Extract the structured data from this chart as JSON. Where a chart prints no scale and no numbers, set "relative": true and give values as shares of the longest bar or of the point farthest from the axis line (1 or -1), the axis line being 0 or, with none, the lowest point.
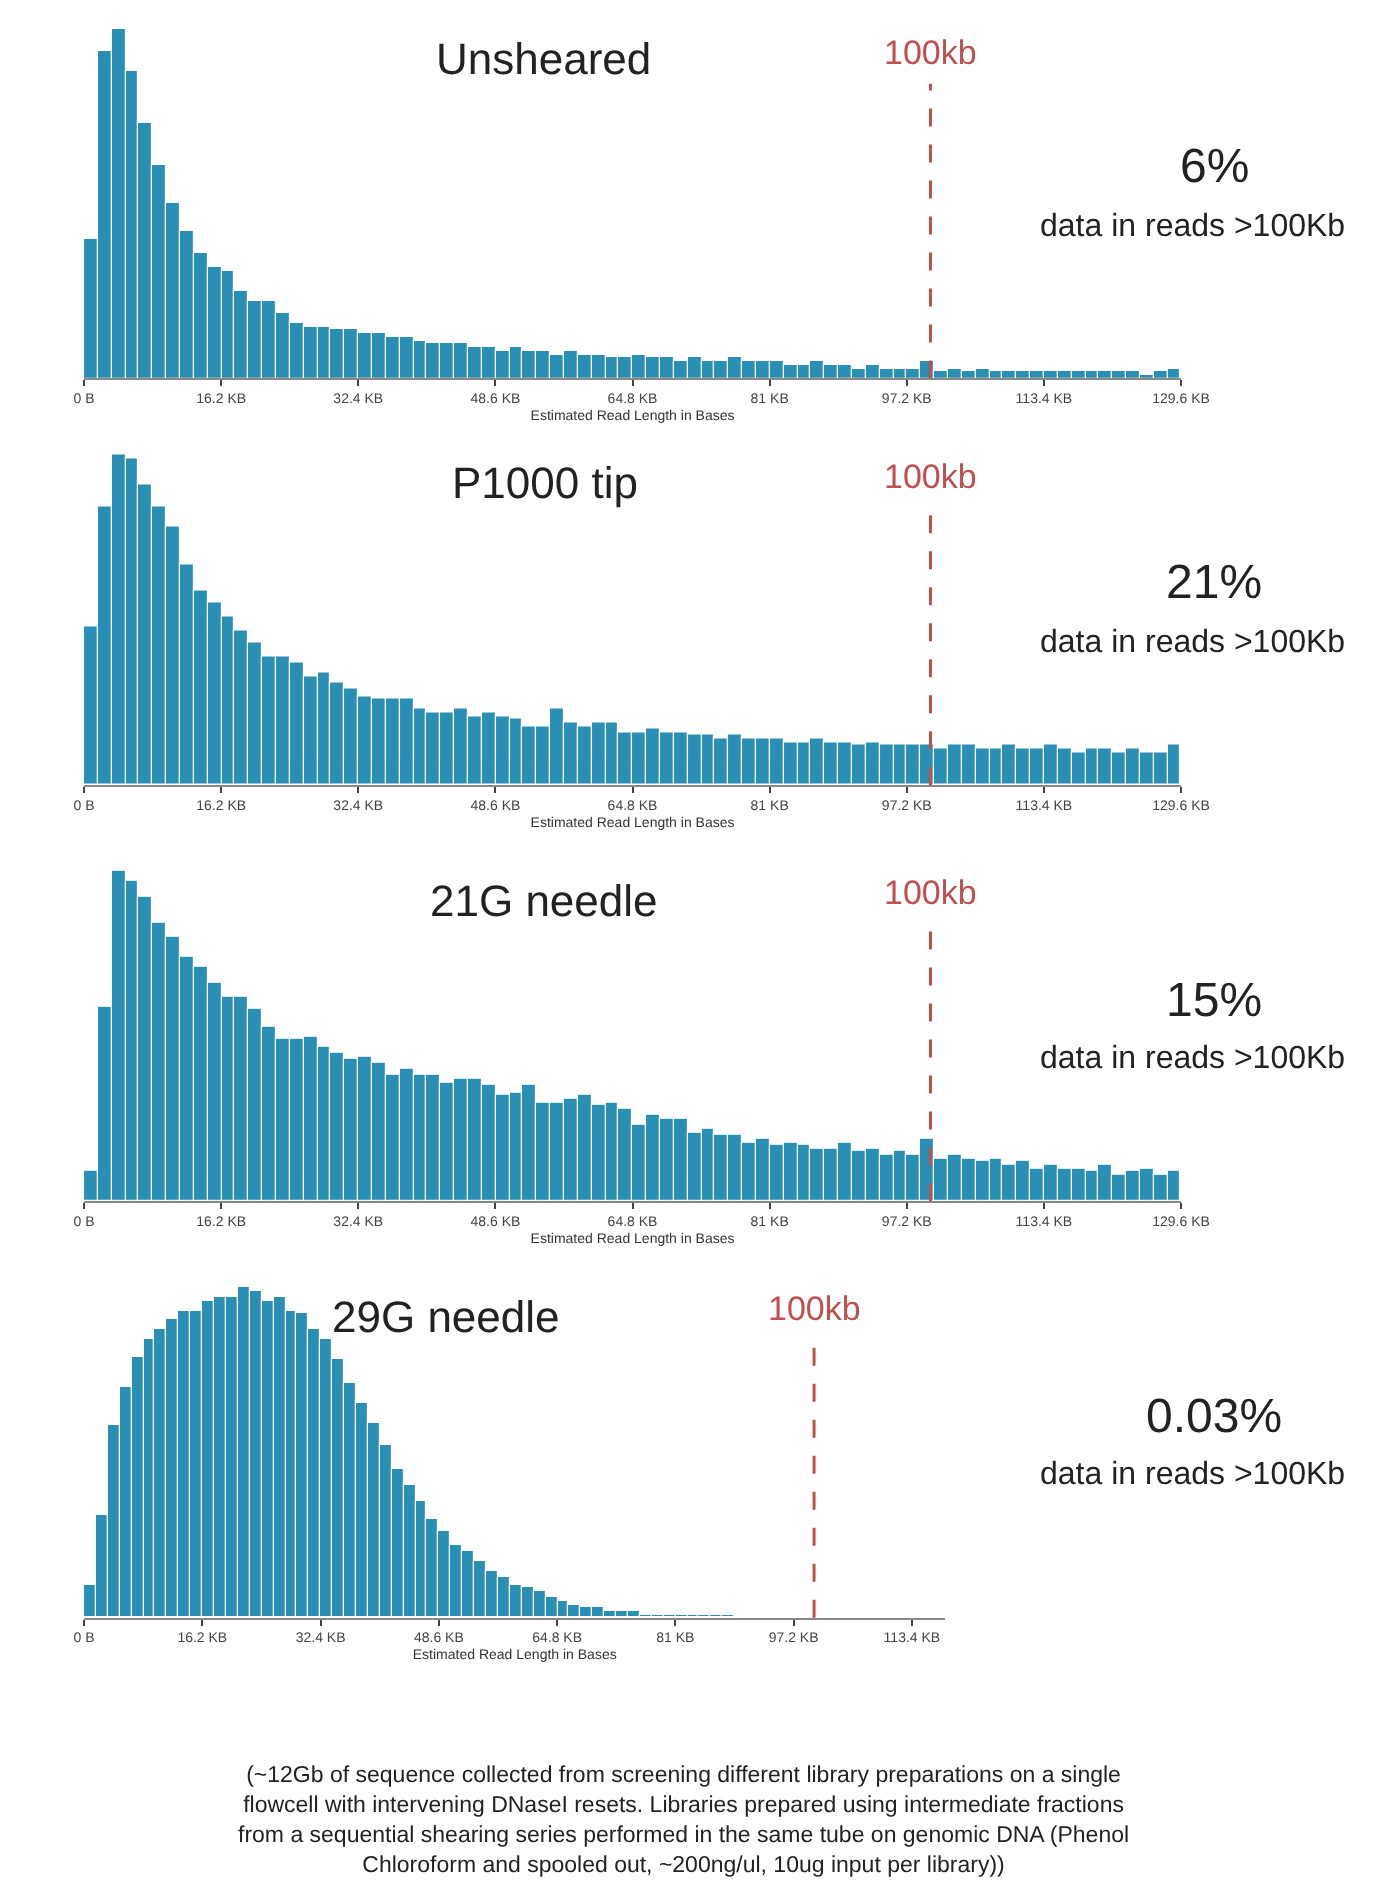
{
  "chart_data": [
    {
      "type": "bar",
      "relative": true,
      "title": "Unsheared",
      "xlabel": "Estimated Read Length in Bases",
      "color": "#2a8fb5",
      "xlim": [
        0,
        129.6
      ],
      "xticks": [
        {
          "value": 0,
          "label": "0 B"
        },
        {
          "value": 16.2,
          "label": "16.2 KB"
        },
        {
          "value": 32.4,
          "label": "32.4 KB"
        },
        {
          "value": 48.6,
          "label": "48.6 KB"
        },
        {
          "value": 64.8,
          "label": "64.8 KB"
        },
        {
          "value": 81,
          "label": "81 KB"
        },
        {
          "value": 97.2,
          "label": "97.2 KB"
        },
        {
          "value": 113.4,
          "label": "113.4 KB"
        },
        {
          "value": 129.6,
          "label": "129.6 KB"
        }
      ],
      "tick_labels": "x",
      "x": [
        0.81,
        2.43,
        4.05,
        5.67,
        7.29,
        8.91,
        10.53,
        12.15,
        13.77,
        15.39,
        17.01,
        18.63,
        20.25,
        21.87,
        23.49,
        25.11,
        26.73,
        28.35,
        29.97,
        31.59,
        33.21,
        34.83,
        36.45,
        38.07,
        39.69,
        41.31,
        42.93,
        44.55,
        46.17,
        47.79,
        49.41,
        51.03,
        52.65,
        54.27,
        55.89,
        57.51,
        59.13,
        60.75,
        62.37,
        63.99,
        65.61,
        67.23,
        68.85,
        70.47,
        72.09,
        73.71,
        75.33,
        76.95,
        78.57,
        80.19,
        81.81,
        83.43,
        85.05,
        86.67,
        88.29,
        89.91,
        91.53,
        93.15,
        94.77,
        96.39,
        98.01,
        99.63,
        101.25,
        102.87,
        104.49,
        106.11,
        107.73,
        109.35,
        110.97,
        112.59,
        114.21,
        115.83,
        117.45,
        119.07,
        120.69,
        122.31,
        123.93,
        125.55,
        127.17,
        128.79
      ],
      "values": [
        0.4,
        0.94,
        1.0,
        0.88,
        0.73,
        0.61,
        0.5,
        0.42,
        0.36,
        0.32,
        0.31,
        0.25,
        0.22,
        0.22,
        0.19,
        0.16,
        0.15,
        0.15,
        0.14,
        0.14,
        0.13,
        0.13,
        0.12,
        0.12,
        0.11,
        0.1,
        0.1,
        0.1,
        0.09,
        0.09,
        0.08,
        0.09,
        0.08,
        0.08,
        0.07,
        0.08,
        0.07,
        0.07,
        0.06,
        0.06,
        0.07,
        0.06,
        0.06,
        0.05,
        0.06,
        0.05,
        0.05,
        0.06,
        0.05,
        0.05,
        0.05,
        0.04,
        0.04,
        0.05,
        0.04,
        0.04,
        0.03,
        0.04,
        0.03,
        0.03,
        0.03,
        0.05,
        0.02,
        0.03,
        0.02,
        0.03,
        0.02,
        0.02,
        0.02,
        0.02,
        0.02,
        0.02,
        0.02,
        0.02,
        0.02,
        0.02,
        0.02,
        0.01,
        0.02,
        0.03
      ],
      "ref_lines": [
        {
          "axis": "x",
          "value": 100,
          "label": "100kb",
          "color": "#c0504d",
          "line_style": "dashed"
        }
      ],
      "annotations": [
        "6%",
        "data in reads >100Kb"
      ]
    },
    {
      "type": "bar",
      "relative": true,
      "title": "P1000 tip",
      "xlabel": "Estimated Read Length in Bases",
      "color": "#2a8fb5",
      "xlim": [
        0,
        129.6
      ],
      "xticks": [
        {
          "value": 0,
          "label": "0 B"
        },
        {
          "value": 16.2,
          "label": "16.2 KB"
        },
        {
          "value": 32.4,
          "label": "32.4 KB"
        },
        {
          "value": 48.6,
          "label": "48.6 KB"
        },
        {
          "value": 64.8,
          "label": "64.8 KB"
        },
        {
          "value": 81,
          "label": "81 KB"
        },
        {
          "value": 97.2,
          "label": "97.2 KB"
        },
        {
          "value": 113.4,
          "label": "113.4 KB"
        },
        {
          "value": 129.6,
          "label": "129.6 KB"
        }
      ],
      "tick_labels": "x",
      "x": [
        0.81,
        2.43,
        4.05,
        5.67,
        7.29,
        8.91,
        10.53,
        12.15,
        13.77,
        15.39,
        17.01,
        18.63,
        20.25,
        21.87,
        23.49,
        25.11,
        26.73,
        28.35,
        29.97,
        31.59,
        33.21,
        34.83,
        36.45,
        38.07,
        39.69,
        41.31,
        42.93,
        44.55,
        46.17,
        47.79,
        49.41,
        51.03,
        52.65,
        54.27,
        55.89,
        57.51,
        59.13,
        60.75,
        62.37,
        63.99,
        65.61,
        67.23,
        68.85,
        70.47,
        72.09,
        73.71,
        75.33,
        76.95,
        78.57,
        80.19,
        81.81,
        83.43,
        85.05,
        86.67,
        88.29,
        89.91,
        91.53,
        93.15,
        94.77,
        96.39,
        98.01,
        99.63,
        101.25,
        102.87,
        104.49,
        106.11,
        107.73,
        109.35,
        110.97,
        112.59,
        114.21,
        115.83,
        117.45,
        119.07,
        120.69,
        122.31,
        123.93,
        125.55,
        127.17,
        128.79
      ],
      "values": [
        0.48,
        0.84,
        1.0,
        0.99,
        0.91,
        0.84,
        0.78,
        0.67,
        0.59,
        0.55,
        0.51,
        0.47,
        0.43,
        0.39,
        0.39,
        0.37,
        0.33,
        0.34,
        0.31,
        0.29,
        0.27,
        0.26,
        0.26,
        0.26,
        0.23,
        0.22,
        0.22,
        0.23,
        0.21,
        0.22,
        0.21,
        0.2,
        0.18,
        0.18,
        0.23,
        0.19,
        0.18,
        0.19,
        0.19,
        0.16,
        0.16,
        0.17,
        0.16,
        0.16,
        0.15,
        0.15,
        0.14,
        0.15,
        0.14,
        0.14,
        0.14,
        0.13,
        0.13,
        0.14,
        0.13,
        0.13,
        0.12,
        0.13,
        0.12,
        0.12,
        0.12,
        0.12,
        0.11,
        0.12,
        0.12,
        0.11,
        0.11,
        0.12,
        0.11,
        0.11,
        0.12,
        0.11,
        0.1,
        0.11,
        0.11,
        0.1,
        0.11,
        0.1,
        0.1,
        0.12
      ],
      "ref_lines": [
        {
          "axis": "x",
          "value": 100,
          "label": "100kb",
          "color": "#c0504d",
          "line_style": "dashed"
        }
      ],
      "annotations": [
        "21%",
        "data in reads >100Kb"
      ]
    },
    {
      "type": "bar",
      "relative": true,
      "title": "21G needle",
      "xlabel": "Estimated Read Length in Bases",
      "color": "#2a8fb5",
      "xlim": [
        0,
        129.6
      ],
      "xticks": [
        {
          "value": 0,
          "label": "0 B"
        },
        {
          "value": 16.2,
          "label": "16.2 KB"
        },
        {
          "value": 32.4,
          "label": "32.4 KB"
        },
        {
          "value": 48.6,
          "label": "48.6 KB"
        },
        {
          "value": 64.8,
          "label": "64.8 KB"
        },
        {
          "value": 81,
          "label": "81 KB"
        },
        {
          "value": 97.2,
          "label": "97.2 KB"
        },
        {
          "value": 113.4,
          "label": "113.4 KB"
        },
        {
          "value": 129.6,
          "label": "129.6 KB"
        }
      ],
      "tick_labels": "x",
      "x": [
        0.81,
        2.43,
        4.05,
        5.67,
        7.29,
        8.91,
        10.53,
        12.15,
        13.77,
        15.39,
        17.01,
        18.63,
        20.25,
        21.87,
        23.49,
        25.11,
        26.73,
        28.35,
        29.97,
        31.59,
        33.21,
        34.83,
        36.45,
        38.07,
        39.69,
        41.31,
        42.93,
        44.55,
        46.17,
        47.79,
        49.41,
        51.03,
        52.65,
        54.27,
        55.89,
        57.51,
        59.13,
        60.75,
        62.37,
        63.99,
        65.61,
        67.23,
        68.85,
        70.47,
        72.09,
        73.71,
        75.33,
        76.95,
        78.57,
        80.19,
        81.81,
        83.43,
        85.05,
        86.67,
        88.29,
        89.91,
        91.53,
        93.15,
        94.77,
        96.39,
        98.01,
        99.63,
        101.25,
        102.87,
        104.49,
        106.11,
        107.73,
        109.35,
        110.97,
        112.59,
        114.21,
        115.83,
        117.45,
        119.07,
        120.69,
        122.31,
        123.93,
        125.55,
        127.17,
        128.79
      ],
      "values": [
        0.09,
        0.59,
        1.0,
        0.97,
        0.92,
        0.84,
        0.8,
        0.74,
        0.71,
        0.66,
        0.62,
        0.62,
        0.58,
        0.53,
        0.49,
        0.49,
        0.5,
        0.47,
        0.45,
        0.43,
        0.44,
        0.42,
        0.38,
        0.4,
        0.38,
        0.38,
        0.36,
        0.37,
        0.37,
        0.35,
        0.32,
        0.33,
        0.35,
        0.3,
        0.3,
        0.31,
        0.32,
        0.29,
        0.3,
        0.28,
        0.23,
        0.26,
        0.25,
        0.25,
        0.21,
        0.22,
        0.2,
        0.2,
        0.18,
        0.19,
        0.17,
        0.18,
        0.17,
        0.16,
        0.16,
        0.18,
        0.15,
        0.16,
        0.14,
        0.15,
        0.14,
        0.19,
        0.13,
        0.14,
        0.13,
        0.12,
        0.13,
        0.11,
        0.12,
        0.1,
        0.11,
        0.1,
        0.1,
        0.09,
        0.11,
        0.08,
        0.09,
        0.1,
        0.08,
        0.09
      ],
      "ref_lines": [
        {
          "axis": "x",
          "value": 100,
          "label": "100kb",
          "color": "#c0504d",
          "line_style": "dashed"
        }
      ],
      "annotations": [
        "15%",
        "data in reads >100Kb"
      ]
    },
    {
      "type": "bar",
      "relative": true,
      "title": "29G needle",
      "xlabel": "Estimated Read Length in Bases",
      "color": "#2a8fb5",
      "xlim": [
        0,
        118
      ],
      "xticks": [
        {
          "value": 0,
          "label": "0 B"
        },
        {
          "value": 16.2,
          "label": "16.2 KB"
        },
        {
          "value": 32.4,
          "label": "32.4 KB"
        },
        {
          "value": 48.6,
          "label": "48.6 KB"
        },
        {
          "value": 64.8,
          "label": "64.8 KB"
        },
        {
          "value": 81,
          "label": "81 KB"
        },
        {
          "value": 97.2,
          "label": "97.2 KB"
        },
        {
          "value": 113.4,
          "label": "113.4 KB"
        }
      ],
      "tick_labels": "x",
      "x": [
        0.81,
        2.43,
        4.05,
        5.67,
        7.29,
        8.91,
        10.53,
        12.15,
        13.77,
        15.39,
        17.01,
        18.63,
        20.25,
        21.87,
        23.49,
        25.11,
        26.73,
        28.35,
        29.97,
        31.59,
        33.21,
        34.83,
        36.45,
        38.07,
        39.69,
        41.31,
        42.93,
        44.55,
        46.17,
        47.79,
        49.41,
        51.03,
        52.65,
        54.27,
        55.89,
        57.51,
        59.13,
        60.75,
        62.37,
        63.99,
        65.61,
        67.23,
        68.85,
        70.47,
        72.09,
        73.71,
        75.33,
        76.95,
        78.57,
        80.19,
        81.81,
        83.43,
        85.05,
        86.67,
        88.29
      ],
      "values": [
        0.1,
        0.31,
        0.58,
        0.7,
        0.79,
        0.84,
        0.87,
        0.9,
        0.93,
        0.93,
        0.96,
        0.97,
        0.97,
        1.0,
        0.99,
        0.96,
        0.97,
        0.93,
        0.92,
        0.87,
        0.84,
        0.78,
        0.71,
        0.65,
        0.59,
        0.52,
        0.45,
        0.4,
        0.35,
        0.3,
        0.26,
        0.22,
        0.2,
        0.17,
        0.14,
        0.12,
        0.1,
        0.09,
        0.08,
        0.06,
        0.05,
        0.04,
        0.03,
        0.03,
        0.02,
        0.02,
        0.02,
        0.01,
        0.01,
        0.01,
        0.01,
        0.01,
        0.01,
        0.01,
        0.01
      ],
      "ref_lines": [
        {
          "axis": "x",
          "value": 100,
          "label": "100kb",
          "color": "#c0504d",
          "line_style": "dashed"
        }
      ],
      "annotations": [
        "0.03%",
        "data in reads >100Kb",
        "(~12Gb of sequence collected from screening different library preparations on a single flowcell with intervening DNaseI resets. Libraries prepared using intermediate fractions from a sequential shearing series performed in the same tube on genomic DNA (Phenol Chloroform and spooled out, ~200ng/ul, 10ug input per library))"
      ]
    }
  ]
}
